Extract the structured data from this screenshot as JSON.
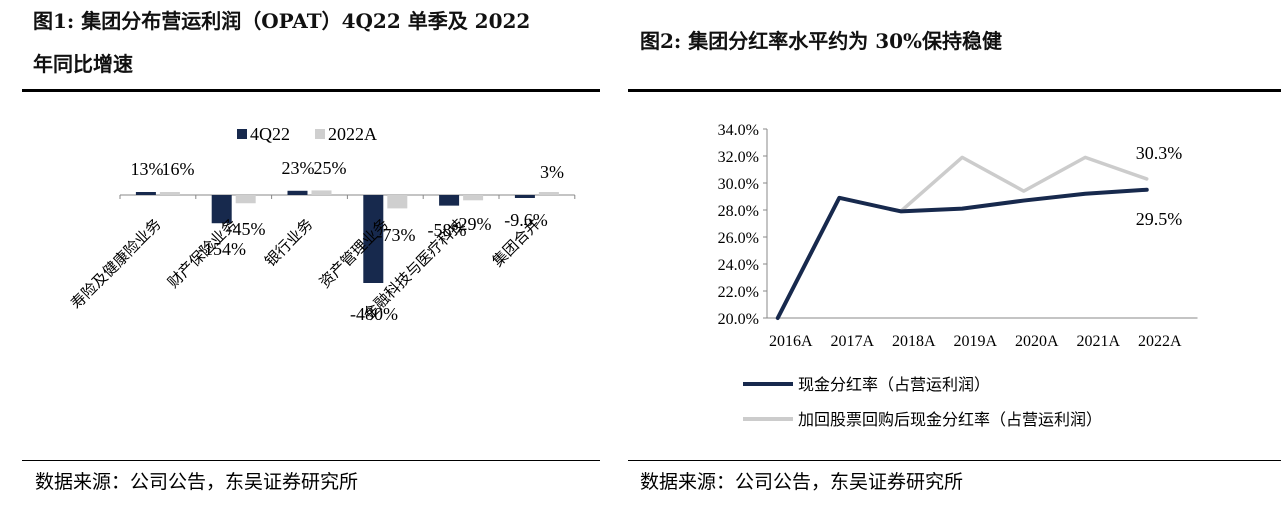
{
  "figures": {
    "left": {
      "title_line1": "图1:  集团分布营运利润（OPAT）4Q22 单季及 2022",
      "title_line2": "年同比增速",
      "source": "数据来源：公司公告，东吴证券研究所"
    },
    "right": {
      "title": "图2:  集团分红率水平约为 30%保持稳健",
      "source": "数据来源：公司公告，东吴证券研究所"
    }
  },
  "chart_data": [
    {
      "type": "bar",
      "categories": [
        "寿险及健康险业务",
        "财产保险业务",
        "银行业务",
        "资产管理业务",
        "金融科技与医疗科技",
        "集团合并"
      ],
      "series": [
        {
          "name": "4Q22",
          "values": [
            13,
            -154,
            23,
            -480,
            -58,
            -9.6
          ],
          "labels": [
            "13%",
            "-154%",
            "23%",
            "-480%",
            "-58%",
            "-9.6%"
          ],
          "color": "#17294d"
        },
        {
          "name": "2022A",
          "values": [
            16,
            -45,
            25,
            -73,
            -29,
            3
          ],
          "labels": [
            "16%",
            "-45%",
            "25%",
            "-73%",
            "-29%",
            "3%"
          ],
          "color": "#cfcfcf"
        }
      ],
      "legend_position": "top-center",
      "grid": false
    },
    {
      "type": "line",
      "x": [
        "2016A",
        "2017A",
        "2018A",
        "2019A",
        "2020A",
        "2021A",
        "2022A"
      ],
      "y_ticks": [
        "34.0%",
        "32.0%",
        "30.0%",
        "28.0%",
        "26.0%",
        "24.0%",
        "22.0%",
        "20.0%"
      ],
      "ylim": [
        20,
        34
      ],
      "series": [
        {
          "name": "现金分红率（占营运利润）",
          "values": [
            20.0,
            28.9,
            27.9,
            28.1,
            28.7,
            29.2,
            29.5
          ],
          "color": "#17294d"
        },
        {
          "name": "加回股票回购后现金分红率（占营运利润）",
          "values": [
            20.0,
            28.9,
            27.9,
            31.9,
            29.4,
            31.9,
            30.3
          ],
          "color": "#cccccc"
        }
      ],
      "annotations": [
        "30.3%",
        "29.5%"
      ],
      "legend_position": "bottom",
      "grid": false
    }
  ]
}
